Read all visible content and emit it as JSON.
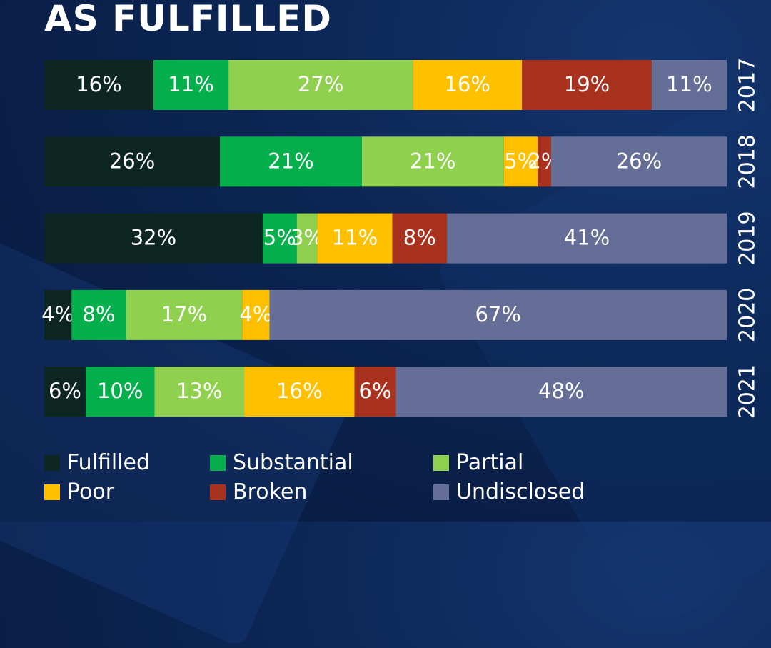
{
  "title": "AS FULFILLED",
  "chart_data": {
    "type": "bar",
    "orientation": "horizontal",
    "stacked": true,
    "categories": [
      "2017",
      "2018",
      "2019",
      "2020",
      "2021"
    ],
    "series": [
      {
        "name": "Fulfilled",
        "color": "#0e2622",
        "values": [
          16,
          26,
          32,
          4,
          6
        ]
      },
      {
        "name": "Substantial",
        "color": "#05b04c",
        "values": [
          11,
          21,
          5,
          8,
          10
        ]
      },
      {
        "name": "Partial",
        "color": "#8fd14f",
        "values": [
          27,
          21,
          3,
          17,
          13
        ]
      },
      {
        "name": "Poor",
        "color": "#ffc000",
        "values": [
          16,
          5,
          11,
          4,
          16
        ]
      },
      {
        "name": "Broken",
        "color": "#a8321e",
        "values": [
          19,
          2,
          8,
          0,
          6
        ]
      },
      {
        "name": "Undisclosed",
        "color": "#646e96",
        "values": [
          11,
          26,
          41,
          67,
          48
        ]
      }
    ],
    "value_suffix": "%",
    "legend_position": "bottom",
    "grid": false
  }
}
